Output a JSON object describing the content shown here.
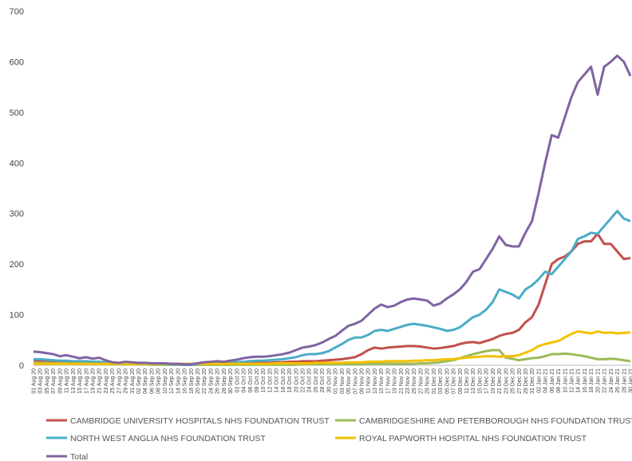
{
  "chart_data": {
    "type": "line",
    "categories": [
      "01 Aug 20",
      "03 Aug 20",
      "05 Aug 20",
      "07 Aug 20",
      "09 Aug 20",
      "11 Aug 20",
      "13 Aug 20",
      "15 Aug 20",
      "17 Aug 20",
      "19 Aug 20",
      "21 Aug 20",
      "23 Aug 20",
      "25 Aug 20",
      "27 Aug 20",
      "29 Aug 20",
      "31 Aug 20",
      "02 Sep 20",
      "04 Sep 20",
      "06 Sep 20",
      "08 Sep 20",
      "10 Sep 20",
      "12 Sep 20",
      "14 Sep 20",
      "16 Sep 20",
      "18 Sep 20",
      "20 Sep 20",
      "22 Sep 20",
      "24 Sep 20",
      "26 Sep 20",
      "28 Sep 20",
      "30 Sep 20",
      "02 Oct 20",
      "04 Oct 20",
      "06 Oct 20",
      "08 Oct 20",
      "10 Oct 20",
      "12 Oct 20",
      "14 Oct 20",
      "16 Oct 20",
      "18 Oct 20",
      "20 Oct 20",
      "22 Oct 20",
      "24 Oct 20",
      "26 Oct 20",
      "28 Oct 20",
      "30 Oct 20",
      "01 Nov 20",
      "03 Nov 20",
      "05 Nov 20",
      "07 Nov 20",
      "09 Nov 20",
      "11 Nov 20",
      "13 Nov 20",
      "15 Nov 20",
      "17 Nov 20",
      "19 Nov 20",
      "21 Nov 20",
      "23 Nov 20",
      "25 Nov 20",
      "27 Nov 20",
      "29 Nov 20",
      "01 Dec 20",
      "03 Dec 20",
      "05 Dec 20",
      "07 Dec 20",
      "09 Dec 20",
      "11 Dec 20",
      "13 Dec 20",
      "15 Dec 20",
      "17 Dec 20",
      "19 Dec 20",
      "21 Dec 20",
      "23 Dec 20",
      "25 Dec 20",
      "27 Dec 20",
      "29 Dec 20",
      "31 Dec 20",
      "02 Jan 21",
      "04 Jan 21",
      "06 Jan 21",
      "08 Jan 21",
      "10 Jan 21",
      "12 Jan 21",
      "14 Jan 21",
      "16 Jan 21",
      "18 Jan 21",
      "20 Jan 21",
      "22 Jan 21",
      "24 Jan 21",
      "26 Jan 21",
      "28 Jan 21",
      "30 Jan 21"
    ],
    "series": [
      {
        "name": "CAMBRIDGE UNIVERSITY HOSPITALS NHS FOUNDATION TRUST",
        "color": "#c0504d",
        "values": [
          10,
          9,
          9,
          8,
          7,
          7,
          6,
          5,
          5,
          5,
          5,
          4,
          3,
          3,
          3,
          3,
          3,
          3,
          2,
          2,
          2,
          2,
          2,
          1,
          1,
          2,
          2,
          3,
          3,
          3,
          4,
          4,
          4,
          5,
          5,
          5,
          5,
          6,
          6,
          7,
          7,
          8,
          8,
          8,
          9,
          10,
          11,
          12,
          14,
          16,
          22,
          30,
          35,
          33,
          35,
          36,
          37,
          38,
          38,
          37,
          35,
          33,
          34,
          36,
          38,
          42,
          45,
          46,
          44,
          48,
          52,
          58,
          62,
          64,
          70,
          85,
          95,
          120,
          160,
          200,
          210,
          215,
          225,
          240,
          245,
          245,
          260,
          240,
          240,
          225,
          210,
          212
        ]
      },
      {
        "name": "CAMBRIDGESHIRE AND PETERBOROUGH NHS FOUNDATION TRUST",
        "color": "#9bbb59",
        "values": [
          5,
          5,
          5,
          4,
          4,
          4,
          3,
          3,
          3,
          3,
          3,
          2,
          2,
          2,
          2,
          2,
          2,
          2,
          1,
          1,
          1,
          1,
          1,
          1,
          1,
          1,
          1,
          1,
          1,
          1,
          1,
          1,
          1,
          1,
          1,
          1,
          1,
          1,
          1,
          1,
          1,
          2,
          2,
          2,
          2,
          2,
          2,
          2,
          2,
          2,
          2,
          3,
          3,
          3,
          3,
          3,
          3,
          3,
          3,
          4,
          4,
          5,
          6,
          8,
          10,
          14,
          18,
          22,
          25,
          28,
          30,
          30,
          15,
          13,
          10,
          12,
          14,
          15,
          18,
          22,
          22,
          23,
          22,
          20,
          18,
          15,
          12,
          12,
          13,
          12,
          10,
          8
        ]
      },
      {
        "name": "NORTH WEST ANGLIA NHS FOUNDATION TRUST",
        "color": "#4bacc6",
        "values": [
          12,
          12,
          11,
          10,
          9,
          9,
          8,
          8,
          8,
          7,
          7,
          6,
          4,
          4,
          4,
          4,
          3,
          3,
          3,
          3,
          2,
          2,
          2,
          1,
          1,
          2,
          3,
          4,
          4,
          4,
          5,
          6,
          7,
          8,
          9,
          9,
          10,
          11,
          12,
          14,
          16,
          20,
          22,
          22,
          24,
          28,
          35,
          42,
          50,
          55,
          55,
          60,
          68,
          70,
          68,
          72,
          76,
          80,
          82,
          80,
          78,
          75,
          72,
          68,
          70,
          75,
          85,
          95,
          100,
          110,
          125,
          150,
          145,
          140,
          132,
          150,
          158,
          170,
          185,
          180,
          195,
          210,
          225,
          250,
          255,
          262,
          260,
          275,
          290,
          305,
          290,
          285
        ]
      },
      {
        "name": "ROYAL PAPWORTH HOSPITAL NHS FOUNDATION TRUST",
        "color": "#f5c000",
        "values": [
          3,
          3,
          3,
          3,
          3,
          3,
          3,
          3,
          3,
          3,
          3,
          3,
          3,
          3,
          3,
          3,
          3,
          3,
          3,
          3,
          3,
          3,
          3,
          3,
          3,
          3,
          3,
          3,
          3,
          3,
          3,
          3,
          3,
          3,
          3,
          3,
          3,
          4,
          4,
          4,
          4,
          4,
          4,
          5,
          5,
          5,
          5,
          5,
          6,
          6,
          6,
          7,
          7,
          7,
          8,
          8,
          8,
          8,
          9,
          9,
          10,
          10,
          11,
          12,
          12,
          14,
          15,
          16,
          17,
          18,
          18,
          17,
          18,
          18,
          20,
          25,
          30,
          38,
          42,
          45,
          48,
          55,
          62,
          67,
          65,
          63,
          67,
          64,
          65,
          63,
          64,
          65
        ]
      },
      {
        "name": "Total",
        "color": "#8064a2",
        "values": [
          27,
          26,
          24,
          22,
          18,
          20,
          17,
          14,
          16,
          13,
          15,
          10,
          6,
          5,
          7,
          6,
          5,
          5,
          4,
          4,
          4,
          3,
          3,
          2,
          2,
          4,
          6,
          7,
          8,
          7,
          9,
          11,
          14,
          16,
          17,
          17,
          18,
          20,
          22,
          25,
          30,
          35,
          37,
          40,
          45,
          52,
          58,
          68,
          78,
          82,
          88,
          100,
          112,
          120,
          115,
          118,
          125,
          130,
          132,
          130,
          128,
          118,
          122,
          132,
          140,
          150,
          165,
          185,
          190,
          210,
          230,
          255,
          238,
          235,
          235,
          262,
          285,
          340,
          400,
          455,
          450,
          490,
          530,
          560,
          575,
          590,
          535,
          590,
          600,
          612,
          600,
          572
        ]
      }
    ],
    "ylim": [
      0,
      700
    ],
    "yticks": [
      0,
      100,
      200,
      300,
      400,
      500,
      600,
      700
    ],
    "grid": false
  }
}
